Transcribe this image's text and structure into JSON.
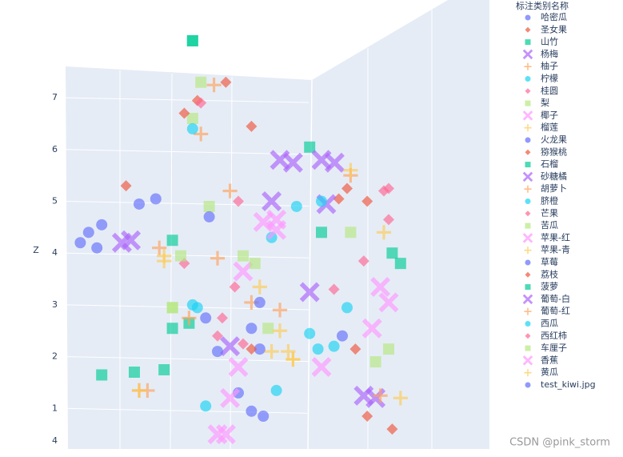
{
  "chart_data": {
    "type": "scatter3d",
    "legend_title": "标注类别名称",
    "zlabel": "Z",
    "zticks": [
      1,
      2,
      3,
      4,
      5,
      6,
      7
    ],
    "xticks": [
      4
    ],
    "zlim": [
      0.3,
      8.5
    ],
    "watermark": "CSDN @pink_storm",
    "series": [
      {
        "name": "哈密瓜",
        "color": "#636efa",
        "symbol": "circle",
        "x": [
          0.2,
          0.6,
          1.5,
          4.6
        ],
        "y": [
          0,
          1,
          1,
          0
        ],
        "z": [
          4.2,
          4.5,
          4.9,
          0.85
        ]
      },
      {
        "name": "圣女果",
        "color": "#EF553B",
        "symbol": "diamond",
        "x": [
          1.3,
          2.9,
          6.5,
          7.1
        ],
        "y": [
          0,
          1,
          1,
          0
        ],
        "z": [
          5.3,
          6.9,
          5.2,
          0.85
        ]
      },
      {
        "name": "山竹",
        "color": "#00cc96",
        "symbol": "square",
        "x": [
          2.9,
          2.3,
          0.6,
          7.7
        ],
        "y": [
          0,
          1,
          1,
          0
        ],
        "z": [
          8.1,
          2.5,
          1.6,
          4.0
        ]
      },
      {
        "name": "杨梅",
        "color": "#ab63fa",
        "symbol": "x",
        "x": [
          5.0,
          1.3,
          6.2,
          7.3
        ],
        "y": [
          0,
          1,
          1,
          0
        ],
        "z": [
          5.8,
          4.2,
          5.7,
          1.2
        ]
      },
      {
        "name": "柚子",
        "color": "#FFA15A",
        "symbol": "cross",
        "x": [
          3.1,
          1.5,
          7.3,
          2.1
        ],
        "y": [
          0,
          1,
          1,
          0
        ],
        "z": [
          6.3,
          1.3,
          1.2,
          4.1
        ]
      },
      {
        "name": "柠檬",
        "color": "#19d3f3",
        "symbol": "circle",
        "x": [
          5.4,
          2.9,
          4.8,
          6.3
        ],
        "y": [
          0,
          1,
          1,
          0
        ],
        "z": [
          4.9,
          2.9,
          1.3,
          2.2
        ]
      },
      {
        "name": "桂圆",
        "color": "#FF6692",
        "symbol": "diamond",
        "x": [
          2.7,
          3.5,
          6.9,
          7.5
        ],
        "y": [
          0,
          1,
          1,
          0
        ],
        "z": [
          3.8,
          2.7,
          3.8,
          5.2
        ]
      },
      {
        "name": "梨",
        "color": "#B6E880",
        "symbol": "square",
        "x": [
          3.1,
          2.3,
          4.0,
          7.3
        ],
        "y": [
          0,
          1,
          1,
          0
        ],
        "z": [
          7.3,
          2.9,
          3.9,
          1.9
        ]
      },
      {
        "name": "椰子",
        "color": "#FF97FF",
        "symbol": "x",
        "x": [
          3.5,
          4.8,
          7.3,
          6.0
        ],
        "y": [
          0,
          1,
          1,
          0
        ],
        "z": [
          0.5,
          4.6,
          3.3,
          1.8
        ]
      },
      {
        "name": "榴莲",
        "color": "#FECB52",
        "symbol": "cross",
        "x": [
          4.8,
          5.2,
          2.1,
          7.9
        ],
        "y": [
          0,
          1,
          1,
          0
        ],
        "z": [
          2.1,
          1.9,
          3.9,
          1.2
        ]
      },
      {
        "name": "火龙果",
        "color": "#636efa",
        "symbol": "circle",
        "x": [
          0.4,
          1.9,
          4.2,
          4.0
        ],
        "y": [
          0,
          1,
          1,
          0
        ],
        "z": [
          4.4,
          5.0,
          2.5,
          1.3
        ]
      },
      {
        "name": "猕猴桃",
        "color": "#EF553B",
        "symbol": "diamond",
        "x": [
          3.7,
          4.2,
          6.3,
          7.7
        ],
        "y": [
          0,
          1,
          1,
          0
        ],
        "z": [
          7.3,
          6.4,
          5.0,
          0.6
        ]
      },
      {
        "name": "石榴",
        "color": "#00cc96",
        "symbol": "square",
        "x": [
          1.5,
          2.7,
          5.6,
          7.9
        ],
        "y": [
          0,
          1,
          1,
          0
        ],
        "z": [
          1.7,
          2.6,
          6.0,
          3.8
        ]
      },
      {
        "name": "砂糖橘",
        "color": "#ab63fa",
        "symbol": "x",
        "x": [
          1.2,
          5.2,
          6.0,
          3.8
        ],
        "y": [
          0,
          1,
          1,
          0
        ],
        "z": [
          4.2,
          5.7,
          4.9,
          2.2
        ]
      },
      {
        "name": "胡萝卜",
        "color": "#FFA15A",
        "symbol": "cross",
        "x": [
          3.8,
          1.7,
          4.2,
          6.7
        ],
        "y": [
          0,
          1,
          1,
          0
        ],
        "z": [
          5.2,
          1.3,
          3.0,
          5.5
        ]
      },
      {
        "name": "脐橙",
        "color": "#19d3f3",
        "symbol": "circle",
        "x": [
          6.0,
          5.6,
          6.5,
          2.9
        ],
        "y": [
          0,
          1,
          1,
          0
        ],
        "z": [
          5.0,
          2.4,
          2.9,
          3.0
        ]
      },
      {
        "name": "芒果",
        "color": "#FF6692",
        "symbol": "diamond",
        "x": [
          3.1,
          4.0,
          7.5,
          6.3
        ],
        "y": [
          0,
          1,
          1,
          0
        ],
        "z": [
          6.9,
          2.2,
          4.6,
          3.3
        ]
      },
      {
        "name": "苦瓜",
        "color": "#B6E880",
        "symbol": "square",
        "x": [
          2.9,
          2.5,
          4.6,
          6.7
        ],
        "y": [
          0,
          1,
          1,
          0
        ],
        "z": [
          6.6,
          3.9,
          2.5,
          4.4
        ]
      },
      {
        "name": "苹果-红",
        "color": "#FF97FF",
        "symbol": "x",
        "x": [
          4.6,
          4.0,
          7.5,
          3.8
        ],
        "y": [
          0,
          1,
          1,
          0
        ],
        "z": [
          4.6,
          3.6,
          3.0,
          1.2
        ]
      },
      {
        "name": "苹果-青",
        "color": "#FECB52",
        "symbol": "cross",
        "x": [
          6.7,
          5.2,
          4.4,
          7.5
        ],
        "y": [
          0,
          1,
          1,
          0
        ],
        "z": [
          5.6,
          1.9,
          3.3,
          4.4
        ]
      },
      {
        "name": "草莓",
        "color": "#636efa",
        "symbol": "circle",
        "x": [
          0.6,
          4.4,
          3.1,
          6.5
        ],
        "y": [
          0,
          1,
          1,
          0
        ],
        "z": [
          4.1,
          2.1,
          2.7,
          2.4
        ]
      },
      {
        "name": "荔枝",
        "color": "#EF553B",
        "symbol": "diamond",
        "x": [
          2.7,
          4.2,
          6.7,
          7.1
        ],
        "y": [
          0,
          1,
          1,
          0
        ],
        "z": [
          6.7,
          2.1,
          2.1,
          5.0
        ]
      },
      {
        "name": "菠萝",
        "color": "#00cc96",
        "symbol": "square",
        "x": [
          2.9,
          2.1,
          2.3,
          6.0
        ],
        "y": [
          0,
          1,
          1,
          0
        ],
        "z": [
          8.1,
          1.7,
          4.2,
          4.4
        ]
      },
      {
        "name": "葡萄-白",
        "color": "#ab63fa",
        "symbol": "x",
        "x": [
          6.0,
          5.6,
          6.9,
          4.8
        ],
        "y": [
          0,
          1,
          1,
          0
        ],
        "z": [
          5.8,
          3.2,
          1.2,
          5.0
        ]
      },
      {
        "name": "葡萄-红",
        "color": "#FFA15A",
        "symbol": "cross",
        "x": [
          3.5,
          2.7,
          3.3,
          5.0
        ],
        "y": [
          0,
          1,
          1,
          0
        ],
        "z": [
          3.9,
          2.7,
          7.2,
          2.9
        ]
      },
      {
        "name": "西瓜",
        "color": "#19d3f3",
        "symbol": "circle",
        "x": [
          4.8,
          3.1,
          5.8,
          2.9
        ],
        "y": [
          0,
          1,
          1,
          0
        ],
        "z": [
          4.3,
          1.0,
          2.1,
          6.4
        ]
      },
      {
        "name": "西红柿",
        "color": "#FF6692",
        "symbol": "diamond",
        "x": [
          3.5,
          7.5,
          3.8,
          4.0
        ],
        "y": [
          0,
          1,
          1,
          0
        ],
        "z": [
          2.4,
          5.2,
          3.3,
          5.0
        ]
      },
      {
        "name": "车厘子",
        "color": "#B6E880",
        "symbol": "square",
        "x": [
          3.3,
          2.3,
          7.5,
          4.4
        ],
        "y": [
          0,
          1,
          1,
          0
        ],
        "z": [
          4.9,
          2.9,
          2.1,
          3.8
        ]
      },
      {
        "name": "香蕉",
        "color": "#FF97FF",
        "symbol": "x",
        "x": [
          3.7,
          4.8,
          7.1,
          4.0
        ],
        "y": [
          0,
          1,
          1,
          0
        ],
        "z": [
          0.5,
          4.4,
          2.5,
          1.8
        ]
      },
      {
        "name": "黄瓜",
        "color": "#FECB52",
        "symbol": "cross",
        "x": [
          5.2,
          1.5,
          2.1,
          5.0
        ],
        "y": [
          0,
          1,
          1,
          0
        ],
        "z": [
          2.1,
          1.3,
          3.8,
          2.5
        ]
      },
      {
        "name": "test_kiwi.jpg",
        "color": "#636efa",
        "symbol": "circle",
        "x": [
          3.3,
          4.4,
          4.2,
          3.5
        ],
        "y": [
          0,
          1,
          1,
          0
        ],
        "z": [
          4.7,
          3.0,
          0.9,
          2.1
        ]
      }
    ]
  }
}
